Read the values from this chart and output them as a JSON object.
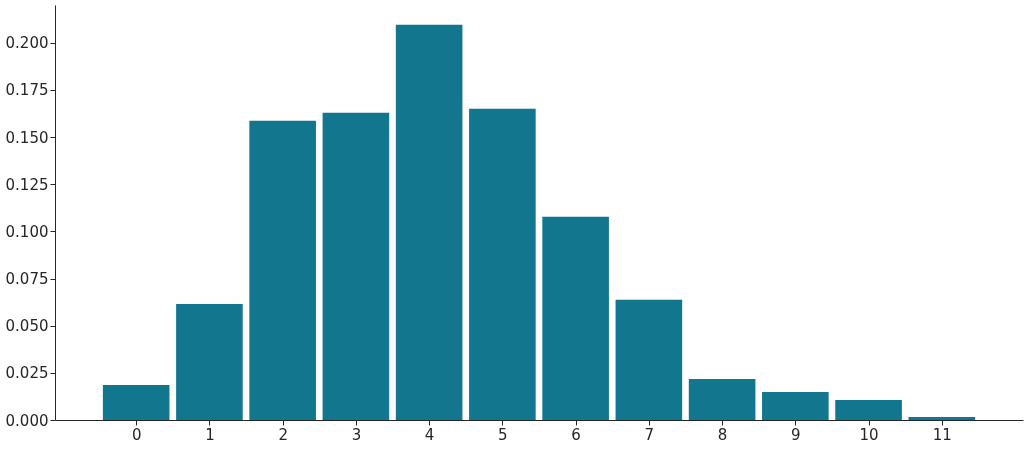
{
  "chart_data": {
    "type": "bar",
    "x": [
      0,
      1,
      2,
      3,
      4,
      5,
      6,
      7,
      8,
      9,
      10,
      11
    ],
    "values": [
      0.0186,
      0.0615,
      0.1586,
      0.1629,
      0.2095,
      0.165,
      0.1077,
      0.0637,
      0.0218,
      0.0149,
      0.0106,
      0.0016
    ],
    "color": "#13768f",
    "xlim": [
      -1.04,
      12.04
    ],
    "xticks": [
      0,
      1,
      2,
      3,
      4,
      5,
      6,
      7,
      8,
      9,
      10,
      11
    ],
    "ylim": [
      0,
      0.22
    ],
    "yticks": [
      {
        "value": 0,
        "label": "0.000"
      },
      {
        "value": 0.025,
        "label": "0.025"
      },
      {
        "value": 0.05,
        "label": "0.050"
      },
      {
        "value": 0.075,
        "label": "0.075"
      },
      {
        "value": 0.1,
        "label": "0.100"
      },
      {
        "value": 0.125,
        "label": "0.125"
      },
      {
        "value": 0.15,
        "label": "0.150"
      },
      {
        "value": 0.175,
        "label": "0.175"
      },
      {
        "value": 0.2,
        "label": "0.200"
      }
    ],
    "grid": false
  }
}
